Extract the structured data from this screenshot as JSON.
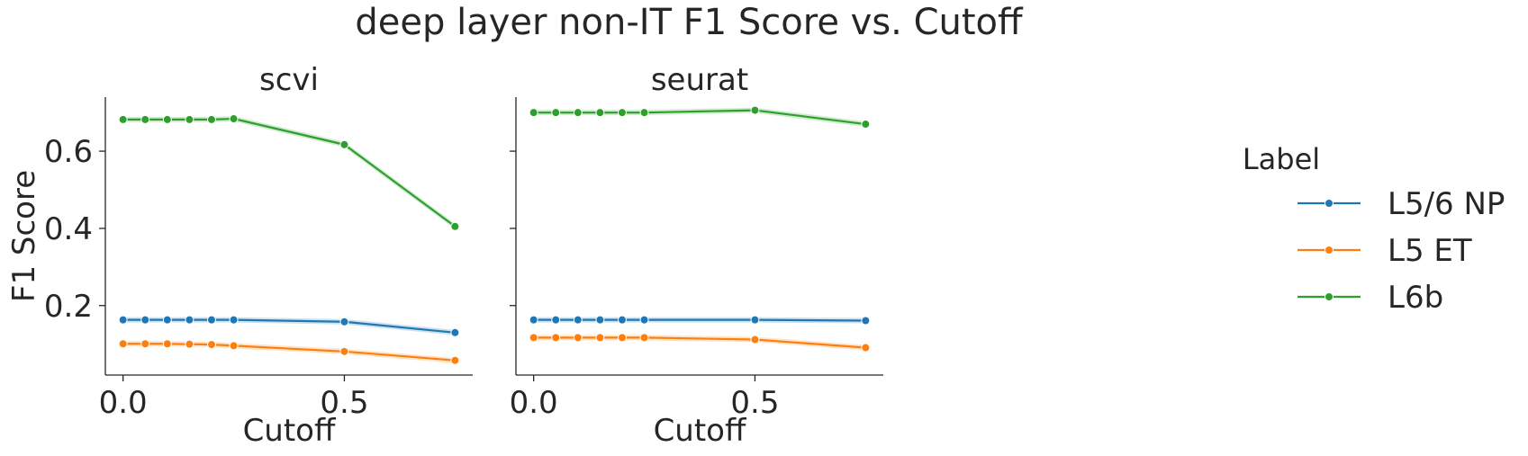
{
  "figure": {
    "suptitle": "deep layer non-IT F1 Score vs. Cutoff",
    "legend_title": "Label",
    "legend_placement": "right-outside"
  },
  "chart_data": [
    {
      "type": "line",
      "title": "scvi",
      "xlabel": "Cutoff",
      "ylabel": "F1 Score",
      "xlim": [
        -0.04,
        0.79
      ],
      "ylim": [
        0.02,
        0.74
      ],
      "xticks": [
        0.0,
        0.5
      ],
      "xtick_labels": [
        "0.0",
        "0.5"
      ],
      "yticks": [
        0.2,
        0.4,
        0.6
      ],
      "ytick_labels": [
        "0.2",
        "0.4",
        "0.6"
      ],
      "grid": false,
      "x": [
        0.0,
        0.05,
        0.1,
        0.15,
        0.2,
        0.25,
        0.5,
        0.75
      ],
      "series": [
        {
          "name": "L5/6 NP",
          "color": "#1f77b4",
          "values": [
            0.163,
            0.163,
            0.163,
            0.163,
            0.163,
            0.163,
            0.158,
            0.13
          ]
        },
        {
          "name": "L5 ET",
          "color": "#ff7f0e",
          "values": [
            0.101,
            0.101,
            0.101,
            0.1,
            0.099,
            0.096,
            0.081,
            0.058
          ]
        },
        {
          "name": "L6b",
          "color": "#2ca02c",
          "values": [
            0.682,
            0.682,
            0.682,
            0.682,
            0.682,
            0.684,
            0.617,
            0.405
          ]
        }
      ]
    },
    {
      "type": "line",
      "title": "seurat",
      "xlabel": "Cutoff",
      "ylabel": "",
      "xlim": [
        -0.04,
        0.79
      ],
      "ylim": [
        0.02,
        0.74
      ],
      "xticks": [
        0.0,
        0.5
      ],
      "xtick_labels": [
        "0.0",
        "0.5"
      ],
      "yticks": [
        0.2,
        0.4,
        0.6
      ],
      "ytick_labels": [],
      "grid": false,
      "x": [
        0.0,
        0.05,
        0.1,
        0.15,
        0.2,
        0.25,
        0.5,
        0.75
      ],
      "series": [
        {
          "name": "L5/6 NP",
          "color": "#1f77b4",
          "values": [
            0.163,
            0.163,
            0.163,
            0.163,
            0.163,
            0.163,
            0.163,
            0.161
          ]
        },
        {
          "name": "L5 ET",
          "color": "#ff7f0e",
          "values": [
            0.117,
            0.117,
            0.117,
            0.117,
            0.117,
            0.117,
            0.112,
            0.091
          ]
        },
        {
          "name": "L6b",
          "color": "#2ca02c",
          "values": [
            0.7,
            0.7,
            0.7,
            0.7,
            0.7,
            0.7,
            0.706,
            0.67
          ]
        }
      ]
    }
  ]
}
